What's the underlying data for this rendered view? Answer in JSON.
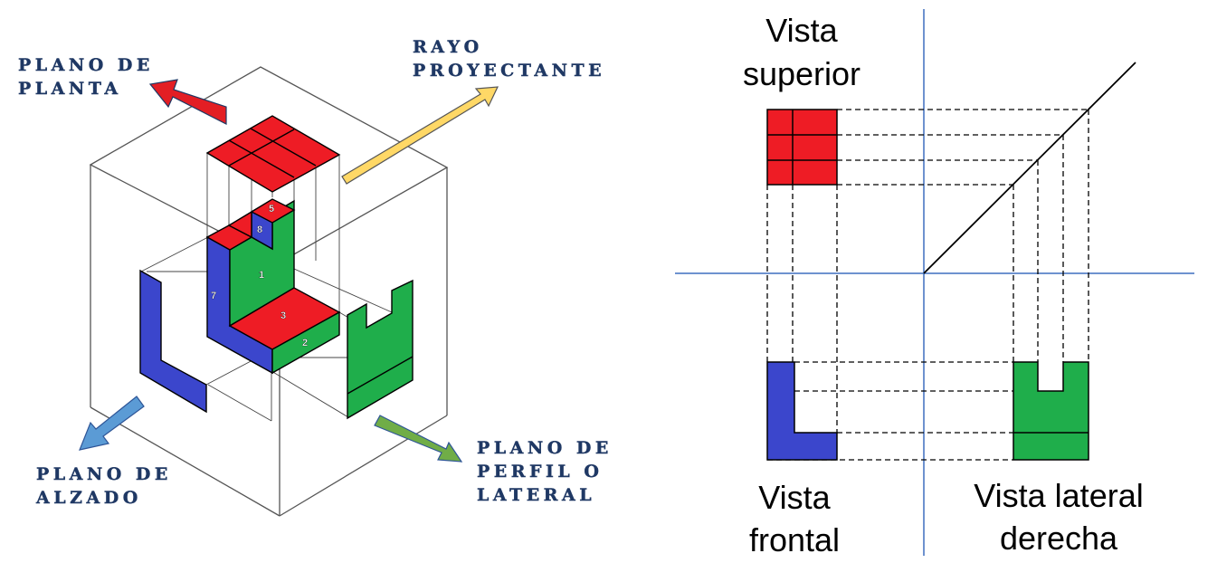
{
  "isometric": {
    "labels": {
      "plano_planta": [
        "PLANO DE",
        "PLANTA"
      ],
      "rayo": [
        "RAYO",
        "PROYECTANTE"
      ],
      "plano_alzado": [
        "PLANO DE",
        "ALZADO"
      ],
      "plano_perfil": [
        "PLANO DE",
        "PERFIL O",
        "LATERAL"
      ]
    },
    "face_numbers": [
      "1",
      "2",
      "3",
      "5",
      "7",
      "8"
    ]
  },
  "projections": {
    "labels": {
      "superior": [
        "Vista",
        "superior"
      ],
      "frontal": [
        "Vista",
        "frontal"
      ],
      "lateral": [
        "Vista lateral",
        "derecha"
      ]
    }
  },
  "colors": {
    "top_view": "#ee1c25",
    "front_view": "#3b46cc",
    "side_view": "#1fae4b",
    "axis_blue": "#3f6fbf",
    "label_navy": "#1f3864",
    "arrow_red": "#e31e24",
    "arrow_yellow": "#ffd866",
    "arrow_lightblue": "#5b9bd5",
    "arrow_green": "#70ad47"
  }
}
